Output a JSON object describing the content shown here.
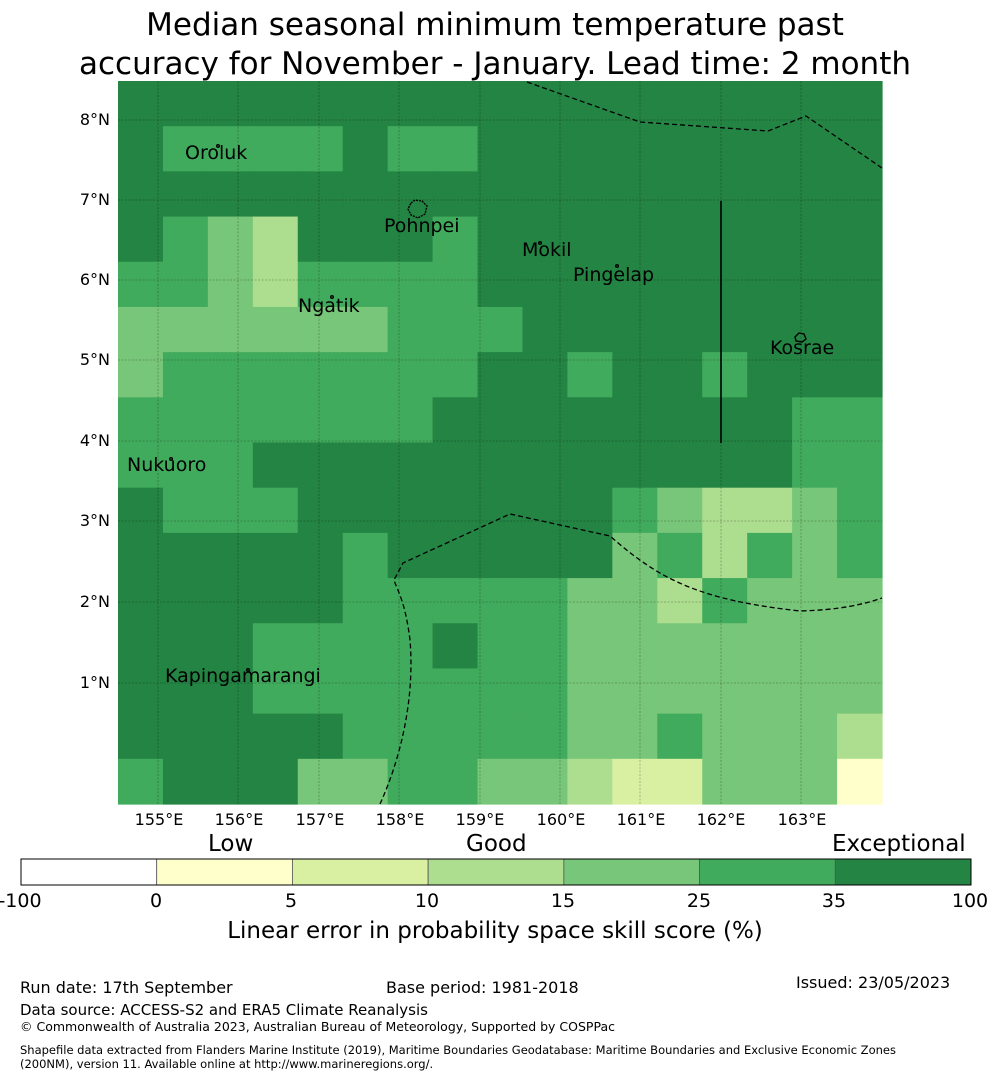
{
  "title": {
    "line1": "Median seasonal minimum temperature past",
    "line2": "accuracy for November - January. Lead time: 2 month"
  },
  "map": {
    "lat_labels": [
      "8°N",
      "7°N",
      "6°N",
      "5°N",
      "4°N",
      "3°N",
      "2°N",
      "1°N"
    ],
    "lon_labels": [
      "155°E",
      "156°E",
      "157°E",
      "158°E",
      "159°E",
      "160°E",
      "161°E",
      "162°E",
      "163°E"
    ],
    "places": [
      "Oroluk",
      "Pohnpei",
      "Mokil",
      "Pingelap",
      "Ngatik",
      "Kosrae",
      "Nukuoro",
      "Kapingamarangi"
    ],
    "color_classes": [
      "#ffffff",
      "#ffffcc",
      "#d9f0a3",
      "#addd8e",
      "#78c679",
      "#41ab5d",
      "#238443"
    ],
    "grid_columns": 17,
    "grid_rows": 16,
    "grid": [
      "66666666666666666",
      "65555655666666666",
      "66666666666666666",
      "65436665666666666",
      "55435555666666666",
      "44444455566666666",
      "45555555665665666",
      "55555556666666655",
      "55566666666666655",
      "65556666666543345",
      "66666566666453545",
      "66666555554435444",
      "66655556554444444",
      "66655555554444444",
      "66666555554454443",
      "56664455443224441"
    ]
  },
  "legend": {
    "categories": [
      "Low",
      "Good",
      "Exceptional"
    ],
    "ticks": [
      "-100",
      "0",
      "5",
      "10",
      "15",
      "25",
      "35",
      "100"
    ],
    "colors": [
      "#ffffff",
      "#ffffcc",
      "#d9f0a3",
      "#addd8e",
      "#78c679",
      "#41ab5d",
      "#238443"
    ],
    "label": "Linear error in probability space skill score (%)"
  },
  "footer": {
    "run_date": "Run date: 17th September",
    "base_period": "Base period: 1981-2018",
    "issued": "Issued: 23/05/2023",
    "data_source": "Data source: ACCESS-S2 and ERA5 Climate Reanalysis",
    "copyright": "© Commonwealth of Australia 2023, Australian Bureau of Meteorology, Supported by COSPPac",
    "shapefile_line1": "Shapefile data extracted from Flanders Marine Institute (2019), Maritime Boundaries Geodatabase: Maritime Boundaries and Exclusive Economic Zones",
    "shapefile_line2": "(200NM), version 11. Available online at http://www.marineregions.org/."
  }
}
